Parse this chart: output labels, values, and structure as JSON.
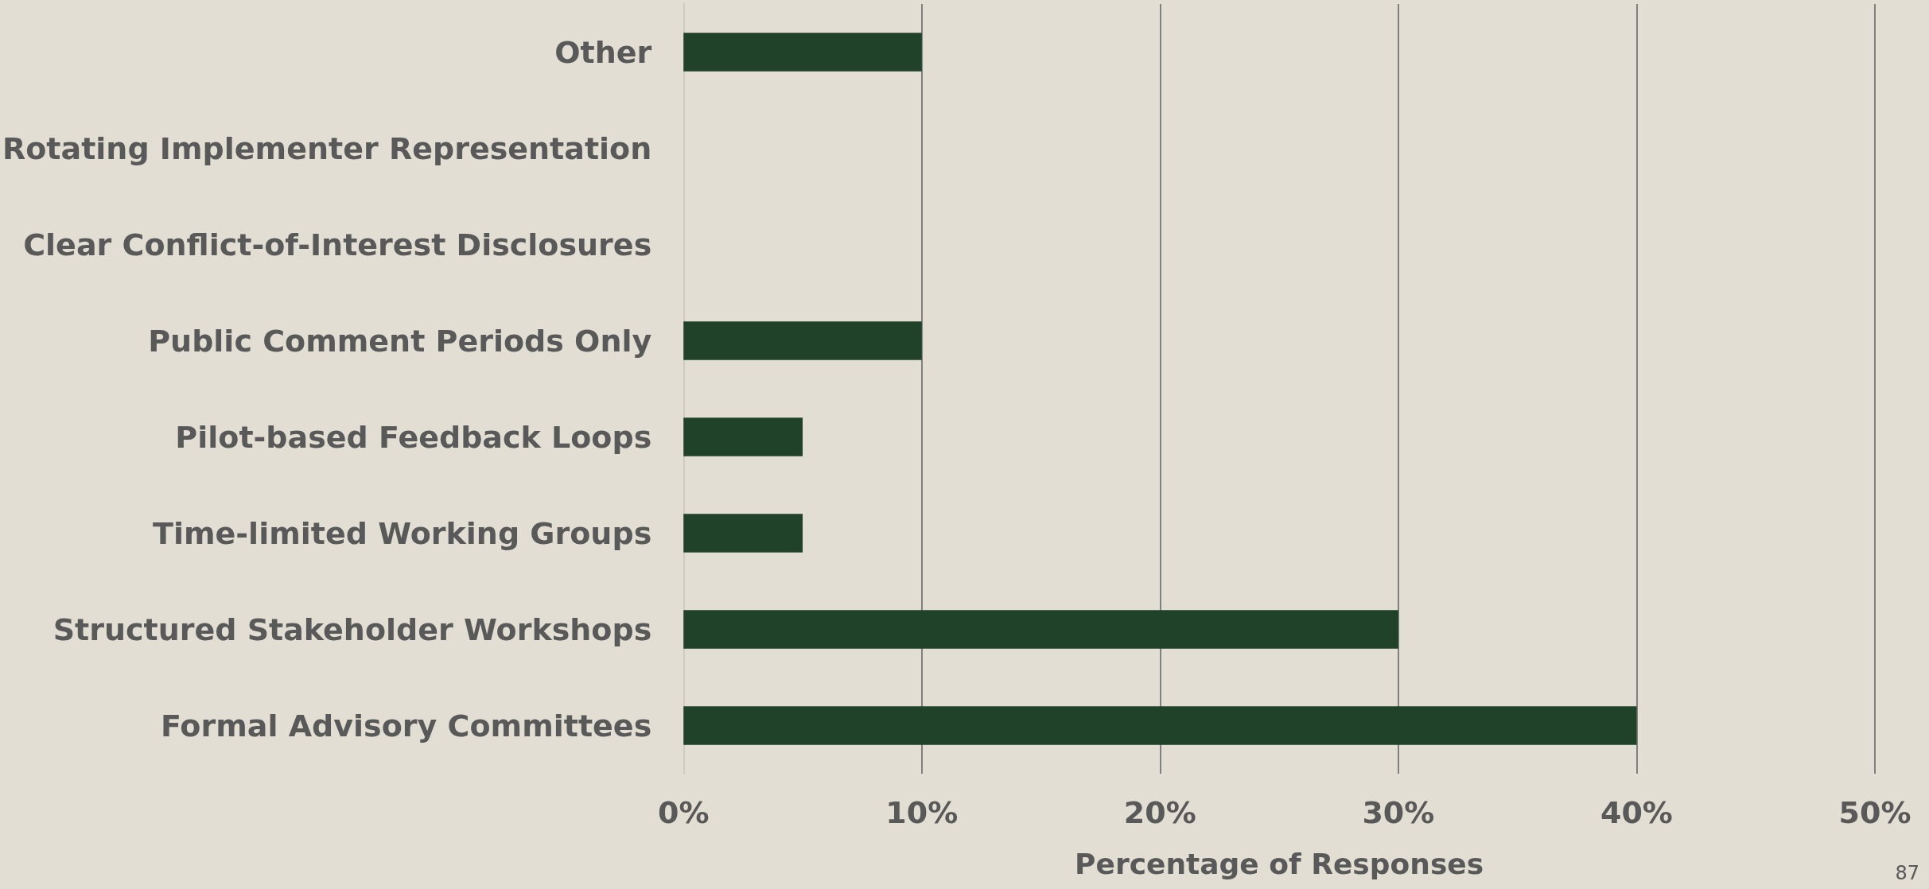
{
  "chart_data": {
    "type": "bar",
    "orientation": "horizontal",
    "xlabel": "Percentage of Responses",
    "categories": [
      "Other",
      "Rotating Implementer Representation",
      "Clear Conflict-of-Interest Disclosures",
      "Public Comment Periods Only",
      "Pilot-based Feedback Loops",
      "Time-limited Working Groups",
      "Structured Stakeholder Workshops",
      "Formal Advisory Committees"
    ],
    "values": [
      10,
      0,
      0,
      10,
      5,
      5,
      30,
      40
    ],
    "color": "#1f4229",
    "xlim": [
      0,
      50
    ],
    "xticks": [
      {
        "value": 0,
        "label": "0%"
      },
      {
        "value": 10,
        "label": "10%"
      },
      {
        "value": 20,
        "label": "20%"
      },
      {
        "value": 30,
        "label": "30%"
      },
      {
        "value": 40,
        "label": "40%"
      },
      {
        "value": 50,
        "label": "50%"
      }
    ],
    "grid": "x",
    "annotations": [
      "87"
    ]
  }
}
